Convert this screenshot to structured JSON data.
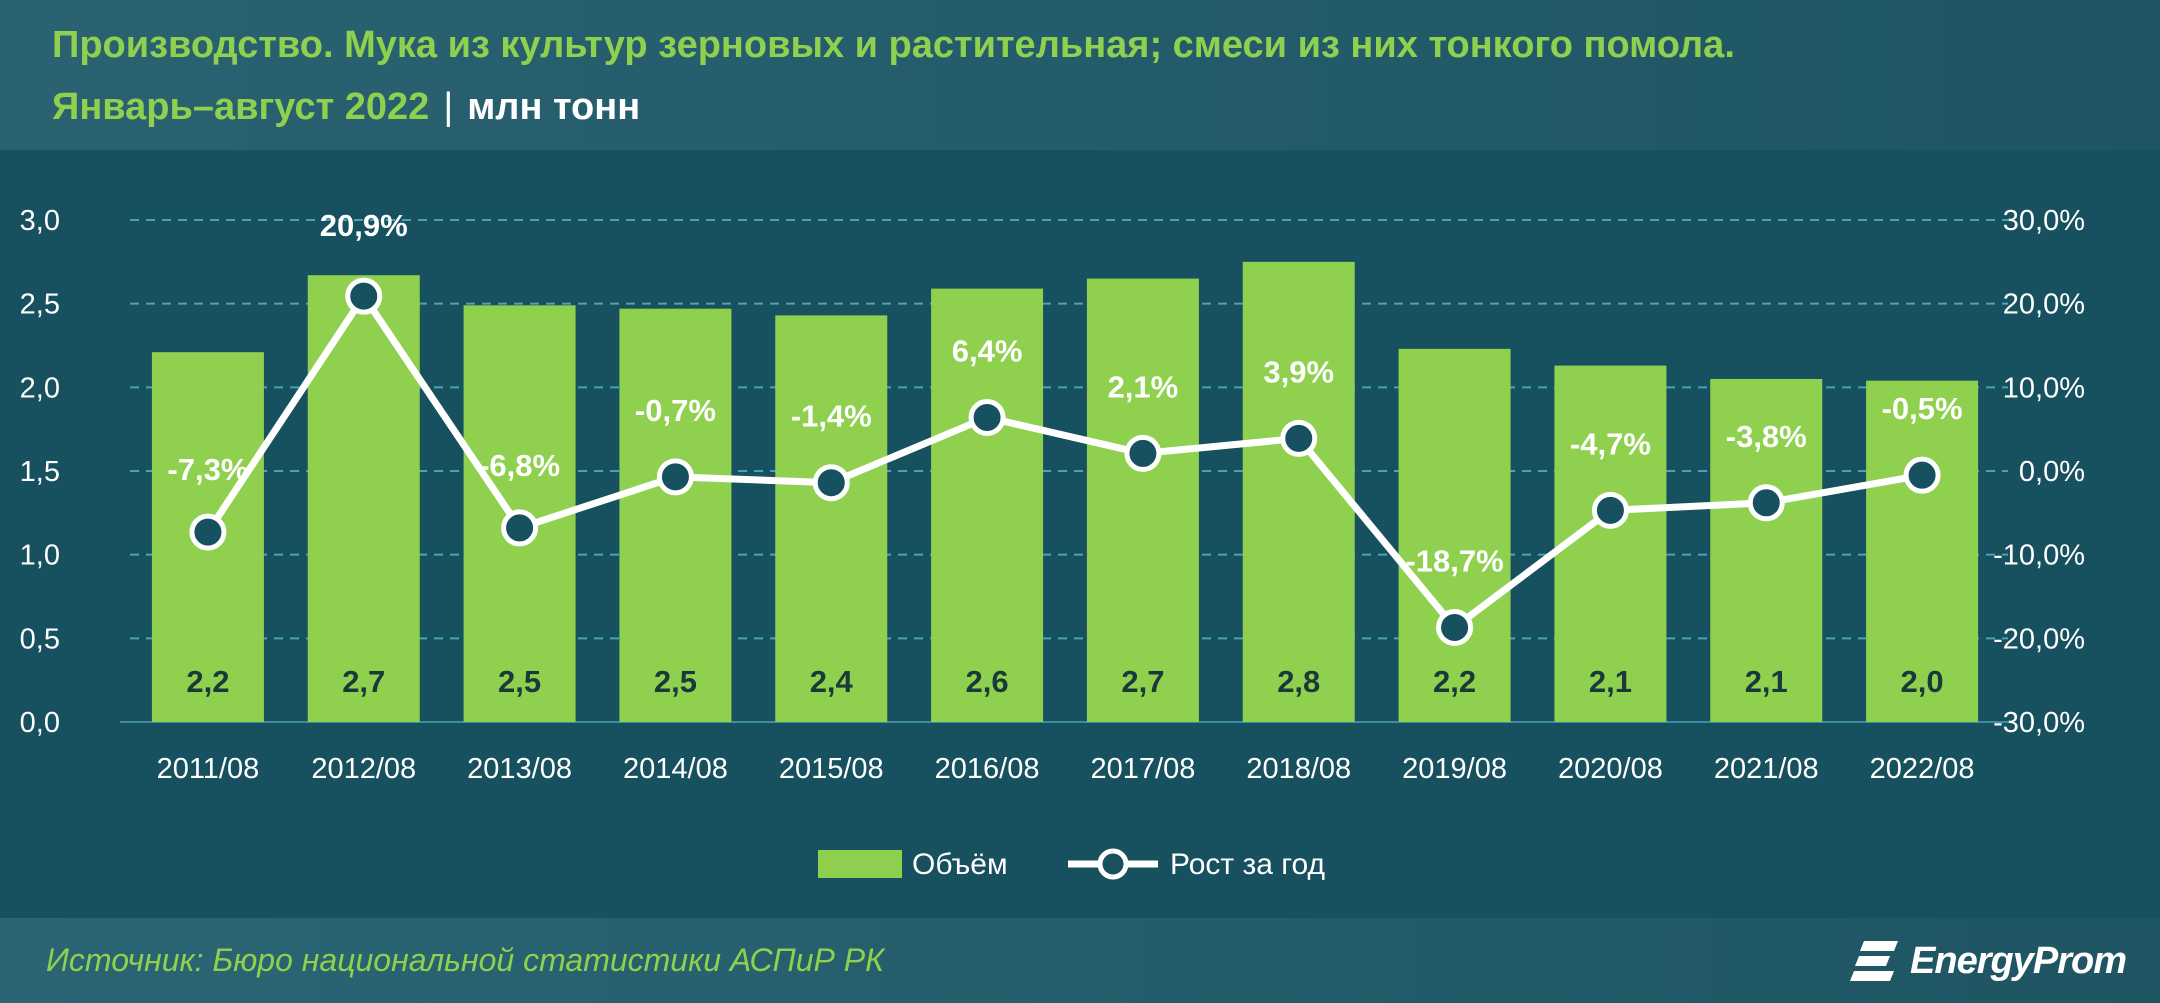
{
  "header": {
    "title_line1": "Производство. Мука из культур зерновых и растительная; смеси из них тонкого помола.",
    "period": "Январь–август 2022",
    "separator": "|",
    "unit": "млн тонн"
  },
  "footer": {
    "source": "Источник: Бюро национальной статистики АСПиР РК",
    "brand": "EnergyProm"
  },
  "colors": {
    "bar": "#8fd14f",
    "line": "#ffffff",
    "title_green": "#8fd14f",
    "grid": "#4aa3b8"
  },
  "chart_data": {
    "type": "bar",
    "categories": [
      "2011/08",
      "2012/08",
      "2013/08",
      "2014/08",
      "2015/08",
      "2016/08",
      "2017/08",
      "2018/08",
      "2019/08",
      "2020/08",
      "2021/08",
      "2022/08"
    ],
    "series": [
      {
        "name": "Объём",
        "type": "bar",
        "axis": "left",
        "values": [
          2.21,
          2.67,
          2.49,
          2.47,
          2.43,
          2.59,
          2.65,
          2.75,
          2.23,
          2.13,
          2.05,
          2.04
        ],
        "labels": [
          "2,2",
          "2,7",
          "2,5",
          "2,5",
          "2,4",
          "2,6",
          "2,7",
          "2,8",
          "2,2",
          "2,1",
          "2,1",
          "2,0"
        ]
      },
      {
        "name": "Рост за год",
        "type": "line",
        "axis": "right",
        "values": [
          -7.3,
          20.9,
          -6.8,
          -0.7,
          -1.4,
          6.4,
          2.1,
          3.9,
          -18.7,
          -4.7,
          -3.8,
          -0.5
        ],
        "labels": [
          "-7,3%",
          "20,9%",
          "-6,8%",
          "-0,7%",
          "-1,4%",
          "6,4%",
          "2,1%",
          "3,9%",
          "-18,7%",
          "-4,7%",
          "-3,8%",
          "-0,5%"
        ]
      }
    ],
    "y_left": {
      "ylim": [
        0,
        3
      ],
      "ticks": [
        0,
        0.5,
        1,
        1.5,
        2,
        2.5,
        3
      ],
      "tick_labels": [
        "0,0",
        "0,5",
        "1,0",
        "1,5",
        "2,0",
        "2,5",
        "3,0"
      ]
    },
    "y_right": {
      "ylim": [
        -30,
        30
      ],
      "ticks": [
        -30,
        -20,
        -10,
        0,
        10,
        20,
        30
      ],
      "tick_labels": [
        "-30,0%",
        "-20,0%",
        "-10,0%",
        "0,0%",
        "10,0%",
        "20,0%",
        "30,0%"
      ]
    },
    "grid": true,
    "legend": {
      "position": "bottom-center",
      "items": [
        "Объём",
        "Рост за год"
      ]
    }
  }
}
